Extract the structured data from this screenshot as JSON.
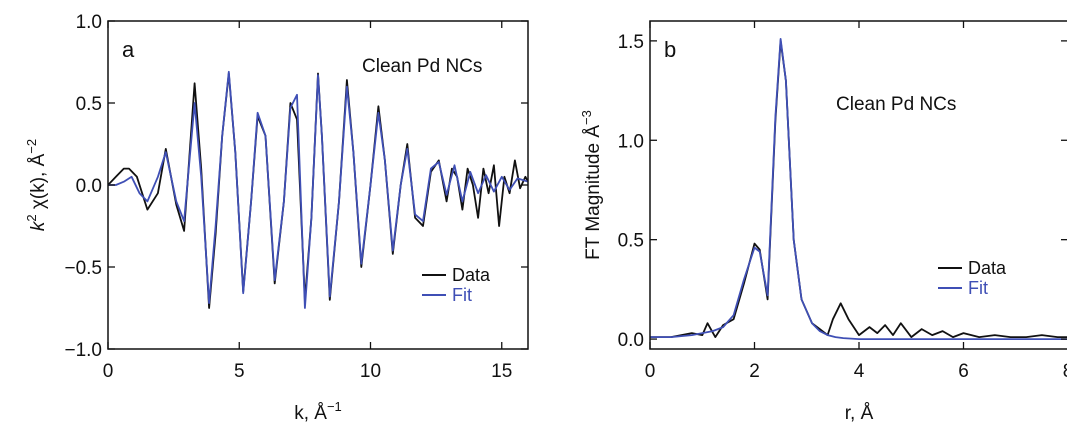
{
  "chart_data": [
    {
      "panel": "a",
      "type": "line",
      "annotation": "Clean Pd NCs",
      "xlabel": "k, Å",
      "xlabel_sup": "−1",
      "ylabel_prefix": "k",
      "ylabel_sup1": "2",
      "ylabel_mid": " χ(k), Å",
      "ylabel_sup2": "−2",
      "xlim": [
        0,
        16
      ],
      "ylim": [
        -1.0,
        1.0
      ],
      "xticks": [
        0,
        5,
        10,
        15
      ],
      "xtick_labels": [
        "0",
        "5",
        "10",
        "15"
      ],
      "yticks": [
        -1.0,
        -0.5,
        0.0,
        0.5,
        1.0
      ],
      "ytick_labels": [
        "−1.0",
        "−0.5",
        "0.0",
        "0.5",
        "1.0"
      ],
      "grid": false,
      "legend_position": "bottom-right",
      "series": [
        {
          "name": "Data",
          "color": "#111111",
          "x": [
            0,
            0.3,
            0.6,
            0.8,
            1.1,
            1.5,
            1.9,
            2.2,
            2.6,
            2.9,
            3.3,
            3.55,
            3.85,
            4.1,
            4.35,
            4.6,
            4.85,
            5.15,
            5.45,
            5.7,
            6.0,
            6.35,
            6.7,
            6.95,
            7.2,
            7.5,
            7.75,
            8.0,
            8.15,
            8.45,
            8.8,
            9.1,
            9.35,
            9.65,
            10.0,
            10.3,
            10.55,
            10.85,
            11.15,
            11.4,
            11.7,
            12.0,
            12.3,
            12.6,
            12.9,
            13.1,
            13.3,
            13.5,
            13.7,
            13.9,
            14.1,
            14.3,
            14.5,
            14.7,
            14.9,
            15.1,
            15.3,
            15.5,
            15.7,
            15.9,
            16.0
          ],
          "y": [
            0.0,
            0.05,
            0.1,
            0.1,
            0.05,
            -0.15,
            -0.05,
            0.22,
            -0.12,
            -0.28,
            0.62,
            0.1,
            -0.75,
            -0.3,
            0.3,
            0.68,
            0.2,
            -0.65,
            -0.1,
            0.42,
            0.3,
            -0.6,
            -0.1,
            0.5,
            0.4,
            -0.7,
            -0.2,
            0.68,
            0.3,
            -0.7,
            -0.1,
            0.64,
            0.2,
            -0.5,
            0.0,
            0.48,
            0.15,
            -0.42,
            0.0,
            0.25,
            -0.2,
            -0.25,
            0.08,
            0.15,
            -0.1,
            0.1,
            0.05,
            -0.15,
            0.1,
            0.0,
            -0.2,
            0.1,
            -0.05,
            0.12,
            -0.25,
            0.05,
            -0.05,
            0.15,
            -0.02,
            0.05,
            0.02
          ]
        },
        {
          "name": "Fit",
          "color": "#3f4fb5",
          "x": [
            0,
            0.3,
            0.6,
            0.9,
            1.2,
            1.5,
            1.9,
            2.2,
            2.6,
            2.9,
            3.3,
            3.55,
            3.85,
            4.1,
            4.35,
            4.6,
            4.85,
            5.15,
            5.45,
            5.7,
            6.0,
            6.35,
            6.7,
            6.95,
            7.2,
            7.5,
            7.75,
            8.0,
            8.15,
            8.45,
            8.8,
            9.1,
            9.35,
            9.65,
            10.0,
            10.3,
            10.55,
            10.85,
            11.15,
            11.4,
            11.7,
            12.0,
            12.3,
            12.6,
            12.9,
            13.2,
            13.5,
            13.8,
            14.1,
            14.4,
            14.7,
            15.0,
            15.3,
            15.6,
            16.0
          ],
          "y": [
            0.0,
            0.0,
            0.02,
            0.05,
            -0.05,
            -0.1,
            0.05,
            0.2,
            -0.1,
            -0.22,
            0.5,
            0.05,
            -0.72,
            -0.25,
            0.3,
            0.69,
            0.2,
            -0.66,
            -0.1,
            0.44,
            0.3,
            -0.58,
            -0.1,
            0.47,
            0.55,
            -0.75,
            -0.2,
            0.67,
            0.3,
            -0.68,
            -0.1,
            0.6,
            0.2,
            -0.48,
            0.0,
            0.44,
            0.15,
            -0.4,
            0.0,
            0.22,
            -0.18,
            -0.22,
            0.1,
            0.14,
            -0.06,
            0.12,
            -0.1,
            0.08,
            -0.05,
            0.06,
            -0.04,
            0.05,
            -0.03,
            0.04,
            0.02
          ]
        }
      ]
    },
    {
      "panel": "b",
      "type": "line",
      "annotation": "Clean Pd NCs",
      "xlabel": "r, Å",
      "ylabel_prefix": "FT Magnitude Å",
      "ylabel_sup": "−3",
      "xlim": [
        0,
        8
      ],
      "ylim": [
        -0.05,
        1.6
      ],
      "xticks": [
        0,
        2,
        4,
        6,
        8
      ],
      "xtick_labels": [
        "0",
        "2",
        "4",
        "6",
        "8"
      ],
      "yticks": [
        0.0,
        0.5,
        1.0,
        1.5
      ],
      "ytick_labels": [
        "0.0",
        "0.5",
        "1.0",
        "1.5"
      ],
      "grid": false,
      "legend_position": "middle-right",
      "series": [
        {
          "name": "Data",
          "color": "#111111",
          "x": [
            0,
            0.4,
            0.8,
            1.0,
            1.1,
            1.25,
            1.4,
            1.6,
            1.8,
            2.0,
            2.1,
            2.25,
            2.4,
            2.5,
            2.6,
            2.75,
            2.9,
            3.1,
            3.25,
            3.4,
            3.5,
            3.65,
            3.8,
            4.0,
            4.2,
            4.35,
            4.5,
            4.65,
            4.8,
            5.0,
            5.2,
            5.4,
            5.6,
            5.8,
            6.0,
            6.3,
            6.6,
            6.9,
            7.2,
            7.5,
            7.8,
            8.0
          ],
          "y": [
            0.01,
            0.01,
            0.03,
            0.02,
            0.08,
            0.01,
            0.07,
            0.1,
            0.28,
            0.48,
            0.45,
            0.2,
            1.1,
            1.5,
            1.3,
            0.5,
            0.2,
            0.08,
            0.05,
            0.02,
            0.1,
            0.18,
            0.1,
            0.02,
            0.06,
            0.03,
            0.07,
            0.02,
            0.08,
            0.01,
            0.05,
            0.02,
            0.04,
            0.01,
            0.03,
            0.01,
            0.02,
            0.01,
            0.01,
            0.02,
            0.01,
            0.01
          ]
        },
        {
          "name": "Fit",
          "color": "#3f4fb5",
          "x": [
            0,
            0.4,
            0.8,
            1.0,
            1.2,
            1.4,
            1.6,
            1.8,
            2.0,
            2.1,
            2.25,
            2.4,
            2.5,
            2.6,
            2.75,
            2.9,
            3.1,
            3.25,
            3.4,
            3.55,
            3.7,
            4.0,
            4.5,
            5.0,
            6.0,
            7.0,
            8.0
          ],
          "y": [
            0.01,
            0.01,
            0.02,
            0.03,
            0.04,
            0.06,
            0.12,
            0.3,
            0.46,
            0.44,
            0.22,
            1.12,
            1.51,
            1.3,
            0.5,
            0.2,
            0.08,
            0.04,
            0.02,
            0.01,
            0.005,
            0.0,
            0.0,
            0.0,
            0.0,
            0.0,
            0.0
          ]
        }
      ]
    }
  ]
}
